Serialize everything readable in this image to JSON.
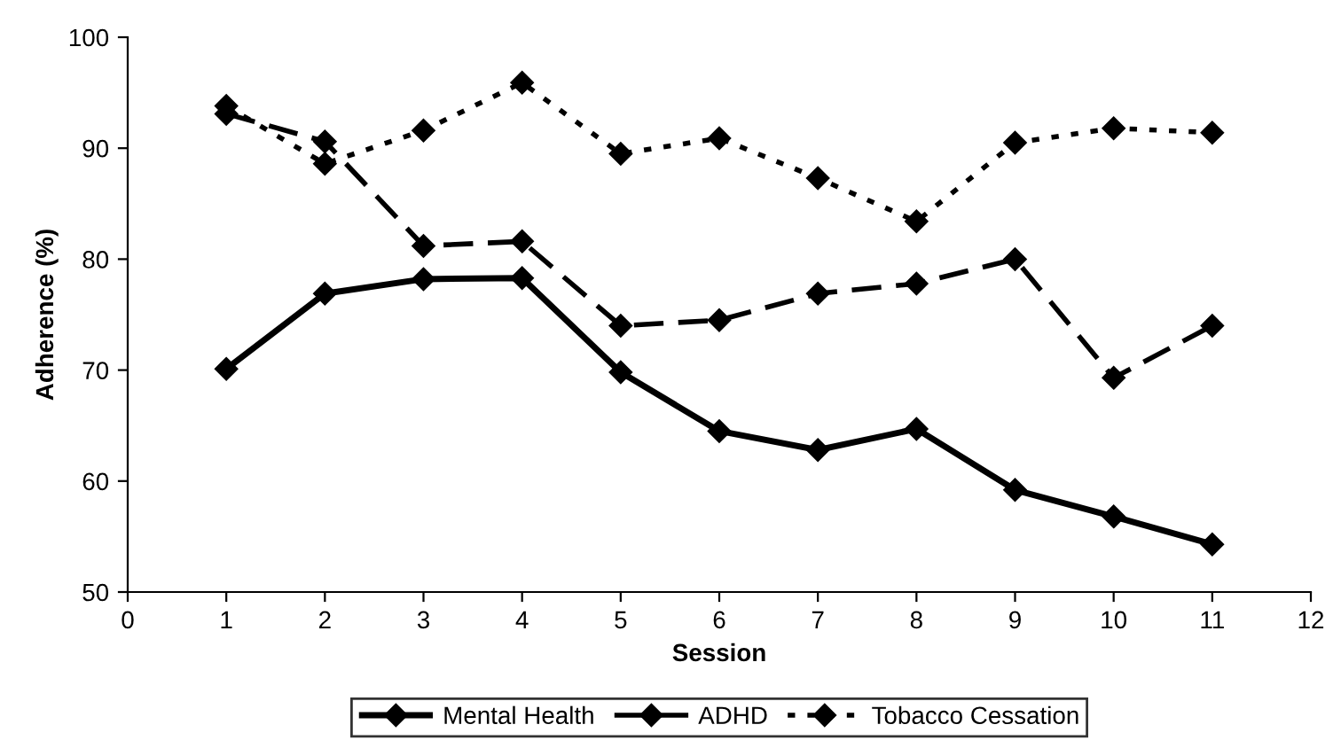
{
  "chart_data": {
    "type": "line",
    "xlabel": "Session",
    "ylabel": "Adherence (%)",
    "x": [
      1,
      2,
      3,
      4,
      5,
      6,
      7,
      8,
      9,
      10,
      11
    ],
    "xlim": [
      0,
      12
    ],
    "xticks": [
      0,
      1,
      2,
      3,
      4,
      5,
      6,
      7,
      8,
      9,
      10,
      11,
      12
    ],
    "ylim": [
      50,
      100
    ],
    "yticks": [
      50,
      60,
      70,
      80,
      90,
      100
    ],
    "grid": false,
    "legend": "bottom",
    "marker": "diamond",
    "series": [
      {
        "name": "Mental Health",
        "color": "#000000",
        "line_style": "solid",
        "values": [
          70.1,
          76.9,
          78.2,
          78.3,
          69.8,
          64.5,
          62.8,
          64.7,
          59.2,
          56.8,
          54.3
        ]
      },
      {
        "name": "ADHD",
        "color": "#000000",
        "line_style": "dashed",
        "values": [
          93.1,
          90.6,
          81.2,
          81.6,
          74.0,
          74.5,
          76.9,
          77.8,
          80.0,
          69.3,
          74.0
        ]
      },
      {
        "name": "Tobacco Cessation",
        "color": "#000000",
        "line_style": "dotted",
        "values": [
          93.8,
          88.6,
          91.6,
          95.9,
          89.5,
          90.9,
          87.3,
          83.4,
          90.5,
          91.8,
          91.4
        ]
      }
    ]
  }
}
